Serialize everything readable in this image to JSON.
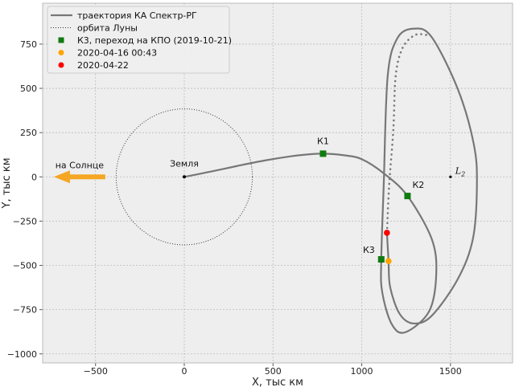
{
  "chart_data": {
    "type": "line",
    "xlabel": "X, тыс км",
    "ylabel": "Y, тыс км",
    "xlim": [
      -798,
      1850
    ],
    "ylim": [
      -1051,
      981
    ],
    "xticks": [
      -500,
      0,
      500,
      1000,
      1500
    ],
    "yticks": [
      750,
      500,
      250,
      0,
      -250,
      -500,
      -750,
      -1000
    ],
    "grid": true,
    "legend_placement": "top-left",
    "legend": [
      {
        "label": "траектория КА Спектр-РГ",
        "kind": "solid-line",
        "color": "#777777"
      },
      {
        "label": "орбита Луны",
        "kind": "dotted-line",
        "color": "#333333"
      },
      {
        "label": "К3, переход на КПО (2019-10-21)",
        "kind": "square",
        "color": "#117a11"
      },
      {
        "label": "2020-04-16 00:43",
        "kind": "circle",
        "color": "#ffa500"
      },
      {
        "label": "2020-04-22",
        "kind": "circle",
        "color": "#ff0000"
      }
    ],
    "trajectory": [
      [
        0,
        0
      ],
      [
        150,
        30
      ],
      [
        300,
        62
      ],
      [
        450,
        92
      ],
      [
        600,
        116
      ],
      [
        700,
        127
      ],
      [
        782,
        131
      ],
      [
        900,
        122
      ],
      [
        1000,
        100
      ],
      [
        1124,
        20
      ],
      [
        1258,
        -108
      ],
      [
        1393,
        -347
      ],
      [
        1420,
        -544
      ],
      [
        1380,
        -759
      ],
      [
        1245,
        -878
      ],
      [
        1169,
        -832
      ],
      [
        1115,
        -649
      ],
      [
        1110,
        -466
      ],
      [
        1124,
        -41
      ],
      [
        1146,
        567
      ],
      [
        1200,
        782
      ],
      [
        1290,
        837
      ],
      [
        1393,
        791
      ],
      [
        1542,
        494
      ],
      [
        1631,
        187
      ],
      [
        1649,
        -41
      ],
      [
        1627,
        -347
      ],
      [
        1542,
        -576
      ],
      [
        1393,
        -786
      ],
      [
        1290,
        -828
      ],
      [
        1213,
        -773
      ],
      [
        1160,
        -622
      ],
      [
        1151,
        -476
      ],
      [
        1142,
        -316
      ]
    ],
    "trajectory_forecast": [
      [
        1142,
        -316
      ],
      [
        1155,
        -41
      ],
      [
        1178,
        265
      ],
      [
        1191,
        567
      ],
      [
        1227,
        722
      ],
      [
        1290,
        796
      ],
      [
        1348,
        805
      ],
      [
        1384,
        791
      ]
    ],
    "moon_orbit_radius": 384,
    "points": {
      "earth": {
        "x": 0,
        "y": 0,
        "label": "Земля"
      },
      "L2": {
        "x": 1500,
        "y": 0,
        "label": "L",
        "sub": "2"
      },
      "K1": {
        "x": 782,
        "y": 131,
        "label": "К1"
      },
      "K2": {
        "x": 1258,
        "y": -108,
        "label": "К2"
      },
      "K3": {
        "x": 1110,
        "y": -466,
        "label": "К3"
      },
      "orange": {
        "x": 1151,
        "y": -476
      },
      "red": {
        "x": 1142,
        "y": -316
      }
    },
    "sun_arrow": {
      "from": [
        -445,
        0
      ],
      "to": [
        -735,
        0
      ],
      "label": "на Солнце",
      "color": "#f5a623"
    },
    "colors": {
      "trajectory": "#777777",
      "marker_green": "#117a11",
      "orange": "#ffa500",
      "red": "#ff0000",
      "plot_bg": "#eeeeee"
    }
  }
}
